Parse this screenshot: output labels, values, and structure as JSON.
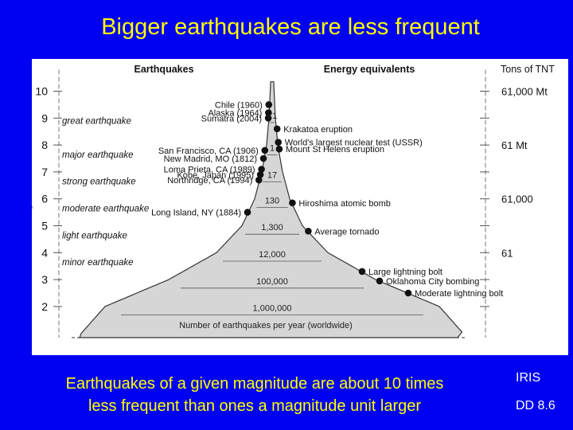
{
  "title": "Bigger earthquakes are less frequent",
  "caption_line1": "Earthquakes of a given magnitude are about 10 times",
  "caption_line2": "less frequent than ones a magnitude unit larger",
  "side_label_1": "IRIS",
  "side_label_2": "DD 8.6",
  "diagram": {
    "header_left": "Earthquakes",
    "header_mid": "Energy equivalents",
    "header_right": "Tons of TNT",
    "axis_label": "Magnitude",
    "magnitudes": [
      "10",
      "9",
      "8",
      "7",
      "6",
      "5",
      "4",
      "3",
      "2"
    ],
    "classes": [
      {
        "text": "great earthquake",
        "m": 8.9
      },
      {
        "text": "major earthquake",
        "m": 7.65
      },
      {
        "text": "strong earthquake",
        "m": 6.65
      },
      {
        "text": "moderate earthquake",
        "m": 5.65
      },
      {
        "text": "light earthquake",
        "m": 4.65
      },
      {
        "text": "minor earthquake",
        "m": 3.65
      }
    ],
    "quakes": [
      {
        "text": "Chile (1960)",
        "m": 9.5
      },
      {
        "text": "Alaska (1964)",
        "m": 9.2
      },
      {
        "text": "Sumatra (2004)",
        "m": 9.0
      },
      {
        "text": "San Francisco, CA (1906)",
        "m": 7.8
      },
      {
        "text": "New Madrid, MO (1812)",
        "m": 7.5
      },
      {
        "text": "Loma Prieta, CA (1989)",
        "m": 7.1
      },
      {
        "text": "Kobe, Japan (1995)",
        "m": 6.9
      },
      {
        "text": "Northridge, CA (1994)",
        "m": 6.7
      },
      {
        "text": "Long Island, NY (1884)",
        "m": 5.5
      }
    ],
    "energy": [
      {
        "text": "Krakatoa eruption",
        "m": 8.6
      },
      {
        "text": "World's largest nuclear test (USSR)",
        "m": 8.1
      },
      {
        "text": "Mount St Helens eruption",
        "m": 7.85
      },
      {
        "text": "Hiroshima atomic bomb",
        "m": 5.85
      },
      {
        "text": "Average tornado",
        "m": 4.8
      },
      {
        "text": "Large lightning bolt",
        "m": 3.3
      },
      {
        "text": "Oklahoma City bombing",
        "m": 2.95
      },
      {
        "text": "Moderate lightning bolt",
        "m": 2.5
      }
    ],
    "counts": [
      {
        "text": "<1",
        "m": 9.1
      },
      {
        "text": "1",
        "m": 7.9
      },
      {
        "text": "17",
        "m": 6.9
      },
      {
        "text": "130",
        "m": 5.95
      },
      {
        "text": "1,300",
        "m": 4.95
      },
      {
        "text": "12,000",
        "m": 3.95
      },
      {
        "text": "100,000",
        "m": 2.95
      },
      {
        "text": "1,000,000",
        "m": 1.95
      }
    ],
    "count_caption": "Number of earthquakes per year (worldwide)",
    "tnt": [
      {
        "text": "61,000 Mt",
        "m": 10
      },
      {
        "text": "61 Mt",
        "m": 8
      },
      {
        "text": "61,000",
        "m": 6
      },
      {
        "text": "61",
        "m": 4
      }
    ],
    "colors": {
      "fill": "#d6d6d6",
      "dot": "#111111",
      "line": "#333333"
    }
  }
}
